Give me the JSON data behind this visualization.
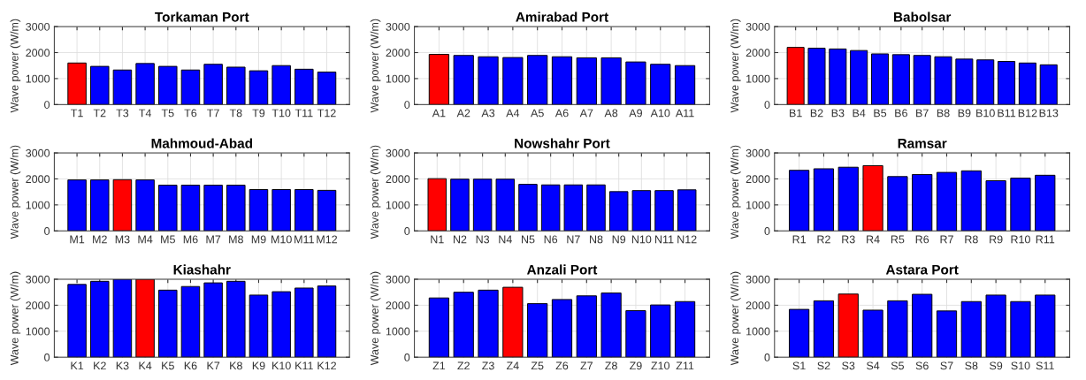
{
  "chart_data": [
    {
      "type": "bar",
      "title": "Torkaman Port",
      "ylabel": "Wave power (W/m)",
      "categories": [
        "T1",
        "T2",
        "T3",
        "T4",
        "T5",
        "T6",
        "T7",
        "T8",
        "T9",
        "T10",
        "T11",
        "T12"
      ],
      "values": [
        1600,
        1470,
        1330,
        1580,
        1470,
        1330,
        1550,
        1440,
        1300,
        1500,
        1360,
        1250
      ],
      "colors": [
        "#ff0000",
        "#0000ff",
        "#0000ff",
        "#0000ff",
        "#0000ff",
        "#0000ff",
        "#0000ff",
        "#0000ff",
        "#0000ff",
        "#0000ff",
        "#0000ff",
        "#0000ff"
      ],
      "ylim": [
        0,
        3000
      ],
      "yticks": [
        0,
        1000,
        2000,
        3000
      ],
      "grid": true
    },
    {
      "type": "bar",
      "title": "Amirabad Port",
      "ylabel": "Wave power (W/m)",
      "categories": [
        "A1",
        "A2",
        "A3",
        "A4",
        "A5",
        "A6",
        "A7",
        "A8",
        "A9",
        "A10",
        "A11"
      ],
      "values": [
        1930,
        1890,
        1840,
        1810,
        1890,
        1840,
        1800,
        1800,
        1640,
        1550,
        1500
      ],
      "colors": [
        "#ff0000",
        "#0000ff",
        "#0000ff",
        "#0000ff",
        "#0000ff",
        "#0000ff",
        "#0000ff",
        "#0000ff",
        "#0000ff",
        "#0000ff",
        "#0000ff"
      ],
      "ylim": [
        0,
        3000
      ],
      "yticks": [
        0,
        1000,
        2000,
        3000
      ],
      "grid": true
    },
    {
      "type": "bar",
      "title": "Babolsar",
      "ylabel": "Wave power (W/m)",
      "categories": [
        "B1",
        "B2",
        "B3",
        "B4",
        "B5",
        "B6",
        "B7",
        "B8",
        "B9",
        "B10",
        "B11",
        "B12",
        "B13"
      ],
      "values": [
        2200,
        2170,
        2140,
        2080,
        1950,
        1920,
        1890,
        1840,
        1750,
        1720,
        1660,
        1600,
        1530
      ],
      "colors": [
        "#ff0000",
        "#0000ff",
        "#0000ff",
        "#0000ff",
        "#0000ff",
        "#0000ff",
        "#0000ff",
        "#0000ff",
        "#0000ff",
        "#0000ff",
        "#0000ff",
        "#0000ff",
        "#0000ff"
      ],
      "ylim": [
        0,
        3000
      ],
      "yticks": [
        0,
        1000,
        2000,
        3000
      ],
      "grid": true
    },
    {
      "type": "bar",
      "title": "Mahmoud-Abad",
      "ylabel": "Wave power (W/m)",
      "categories": [
        "M1",
        "M2",
        "M3",
        "M4",
        "M5",
        "M6",
        "M7",
        "M8",
        "M9",
        "M10",
        "M11",
        "M12"
      ],
      "values": [
        1960,
        1960,
        1970,
        1960,
        1760,
        1760,
        1760,
        1760,
        1590,
        1590,
        1590,
        1560
      ],
      "colors": [
        "#0000ff",
        "#0000ff",
        "#ff0000",
        "#0000ff",
        "#0000ff",
        "#0000ff",
        "#0000ff",
        "#0000ff",
        "#0000ff",
        "#0000ff",
        "#0000ff",
        "#0000ff"
      ],
      "ylim": [
        0,
        3000
      ],
      "yticks": [
        0,
        1000,
        2000,
        3000
      ],
      "grid": true
    },
    {
      "type": "bar",
      "title": "Nowshahr Port",
      "ylabel": "Wave power (W/m)",
      "categories": [
        "N1",
        "N2",
        "N3",
        "N4",
        "N5",
        "N6",
        "N7",
        "N8",
        "N9",
        "N10",
        "N11",
        "N12"
      ],
      "values": [
        2010,
        1990,
        1990,
        1990,
        1790,
        1770,
        1770,
        1770,
        1510,
        1550,
        1550,
        1580
      ],
      "colors": [
        "#ff0000",
        "#0000ff",
        "#0000ff",
        "#0000ff",
        "#0000ff",
        "#0000ff",
        "#0000ff",
        "#0000ff",
        "#0000ff",
        "#0000ff",
        "#0000ff",
        "#0000ff"
      ],
      "ylim": [
        0,
        3000
      ],
      "yticks": [
        0,
        1000,
        2000,
        3000
      ],
      "grid": true
    },
    {
      "type": "bar",
      "title": "Ramsar",
      "ylabel": "Wave power (W/m)",
      "categories": [
        "R1",
        "R2",
        "R3",
        "R4",
        "R5",
        "R6",
        "R7",
        "R8",
        "R9",
        "R10",
        "R11"
      ],
      "values": [
        2330,
        2390,
        2450,
        2510,
        2090,
        2170,
        2250,
        2310,
        1930,
        2030,
        2140
      ],
      "colors": [
        "#0000ff",
        "#0000ff",
        "#0000ff",
        "#ff0000",
        "#0000ff",
        "#0000ff",
        "#0000ff",
        "#0000ff",
        "#0000ff",
        "#0000ff",
        "#0000ff"
      ],
      "ylim": [
        0,
        3000
      ],
      "yticks": [
        0,
        1000,
        2000,
        3000
      ],
      "grid": true
    },
    {
      "type": "bar",
      "title": "Kiashahr",
      "ylabel": "Wave power (W/m)",
      "categories": [
        "K1",
        "K2",
        "K3",
        "K4",
        "K5",
        "K6",
        "K7",
        "K8",
        "K9",
        "K10",
        "K11",
        "K12"
      ],
      "values": [
        2800,
        2920,
        3000,
        3000,
        2580,
        2720,
        2860,
        2920,
        2390,
        2520,
        2660,
        2740
      ],
      "colors": [
        "#0000ff",
        "#0000ff",
        "#0000ff",
        "#ff0000",
        "#0000ff",
        "#0000ff",
        "#0000ff",
        "#0000ff",
        "#0000ff",
        "#0000ff",
        "#0000ff",
        "#0000ff"
      ],
      "ylim": [
        0,
        3000
      ],
      "yticks": [
        0,
        1000,
        2000,
        3000
      ],
      "grid": true
    },
    {
      "type": "bar",
      "title": "Anzali Port",
      "ylabel": "Wave power (W/m)",
      "categories": [
        "Z1",
        "Z2",
        "Z3",
        "Z4",
        "Z5",
        "Z6",
        "Z7",
        "Z8",
        "Z9",
        "Z10",
        "Z11"
      ],
      "values": [
        2280,
        2500,
        2580,
        2690,
        2060,
        2220,
        2360,
        2470,
        1790,
        2010,
        2140
      ],
      "colors": [
        "#0000ff",
        "#0000ff",
        "#0000ff",
        "#ff0000",
        "#0000ff",
        "#0000ff",
        "#0000ff",
        "#0000ff",
        "#0000ff",
        "#0000ff",
        "#0000ff"
      ],
      "ylim": [
        0,
        3000
      ],
      "yticks": [
        0,
        1000,
        2000,
        3000
      ],
      "grid": true
    },
    {
      "type": "bar",
      "title": "Astara Port",
      "ylabel": "Wave power (W/m)",
      "categories": [
        "S1",
        "S2",
        "S3",
        "S4",
        "S5",
        "S6",
        "S7",
        "S8",
        "S9",
        "S10",
        "S11"
      ],
      "values": [
        1840,
        2170,
        2430,
        1810,
        2170,
        2420,
        1780,
        2140,
        2390,
        2140,
        2390
      ],
      "colors": [
        "#0000ff",
        "#0000ff",
        "#ff0000",
        "#0000ff",
        "#0000ff",
        "#0000ff",
        "#0000ff",
        "#0000ff",
        "#0000ff",
        "#0000ff",
        "#0000ff"
      ],
      "ylim": [
        0,
        3000
      ],
      "yticks": [
        0,
        1000,
        2000,
        3000
      ],
      "grid": true
    }
  ]
}
